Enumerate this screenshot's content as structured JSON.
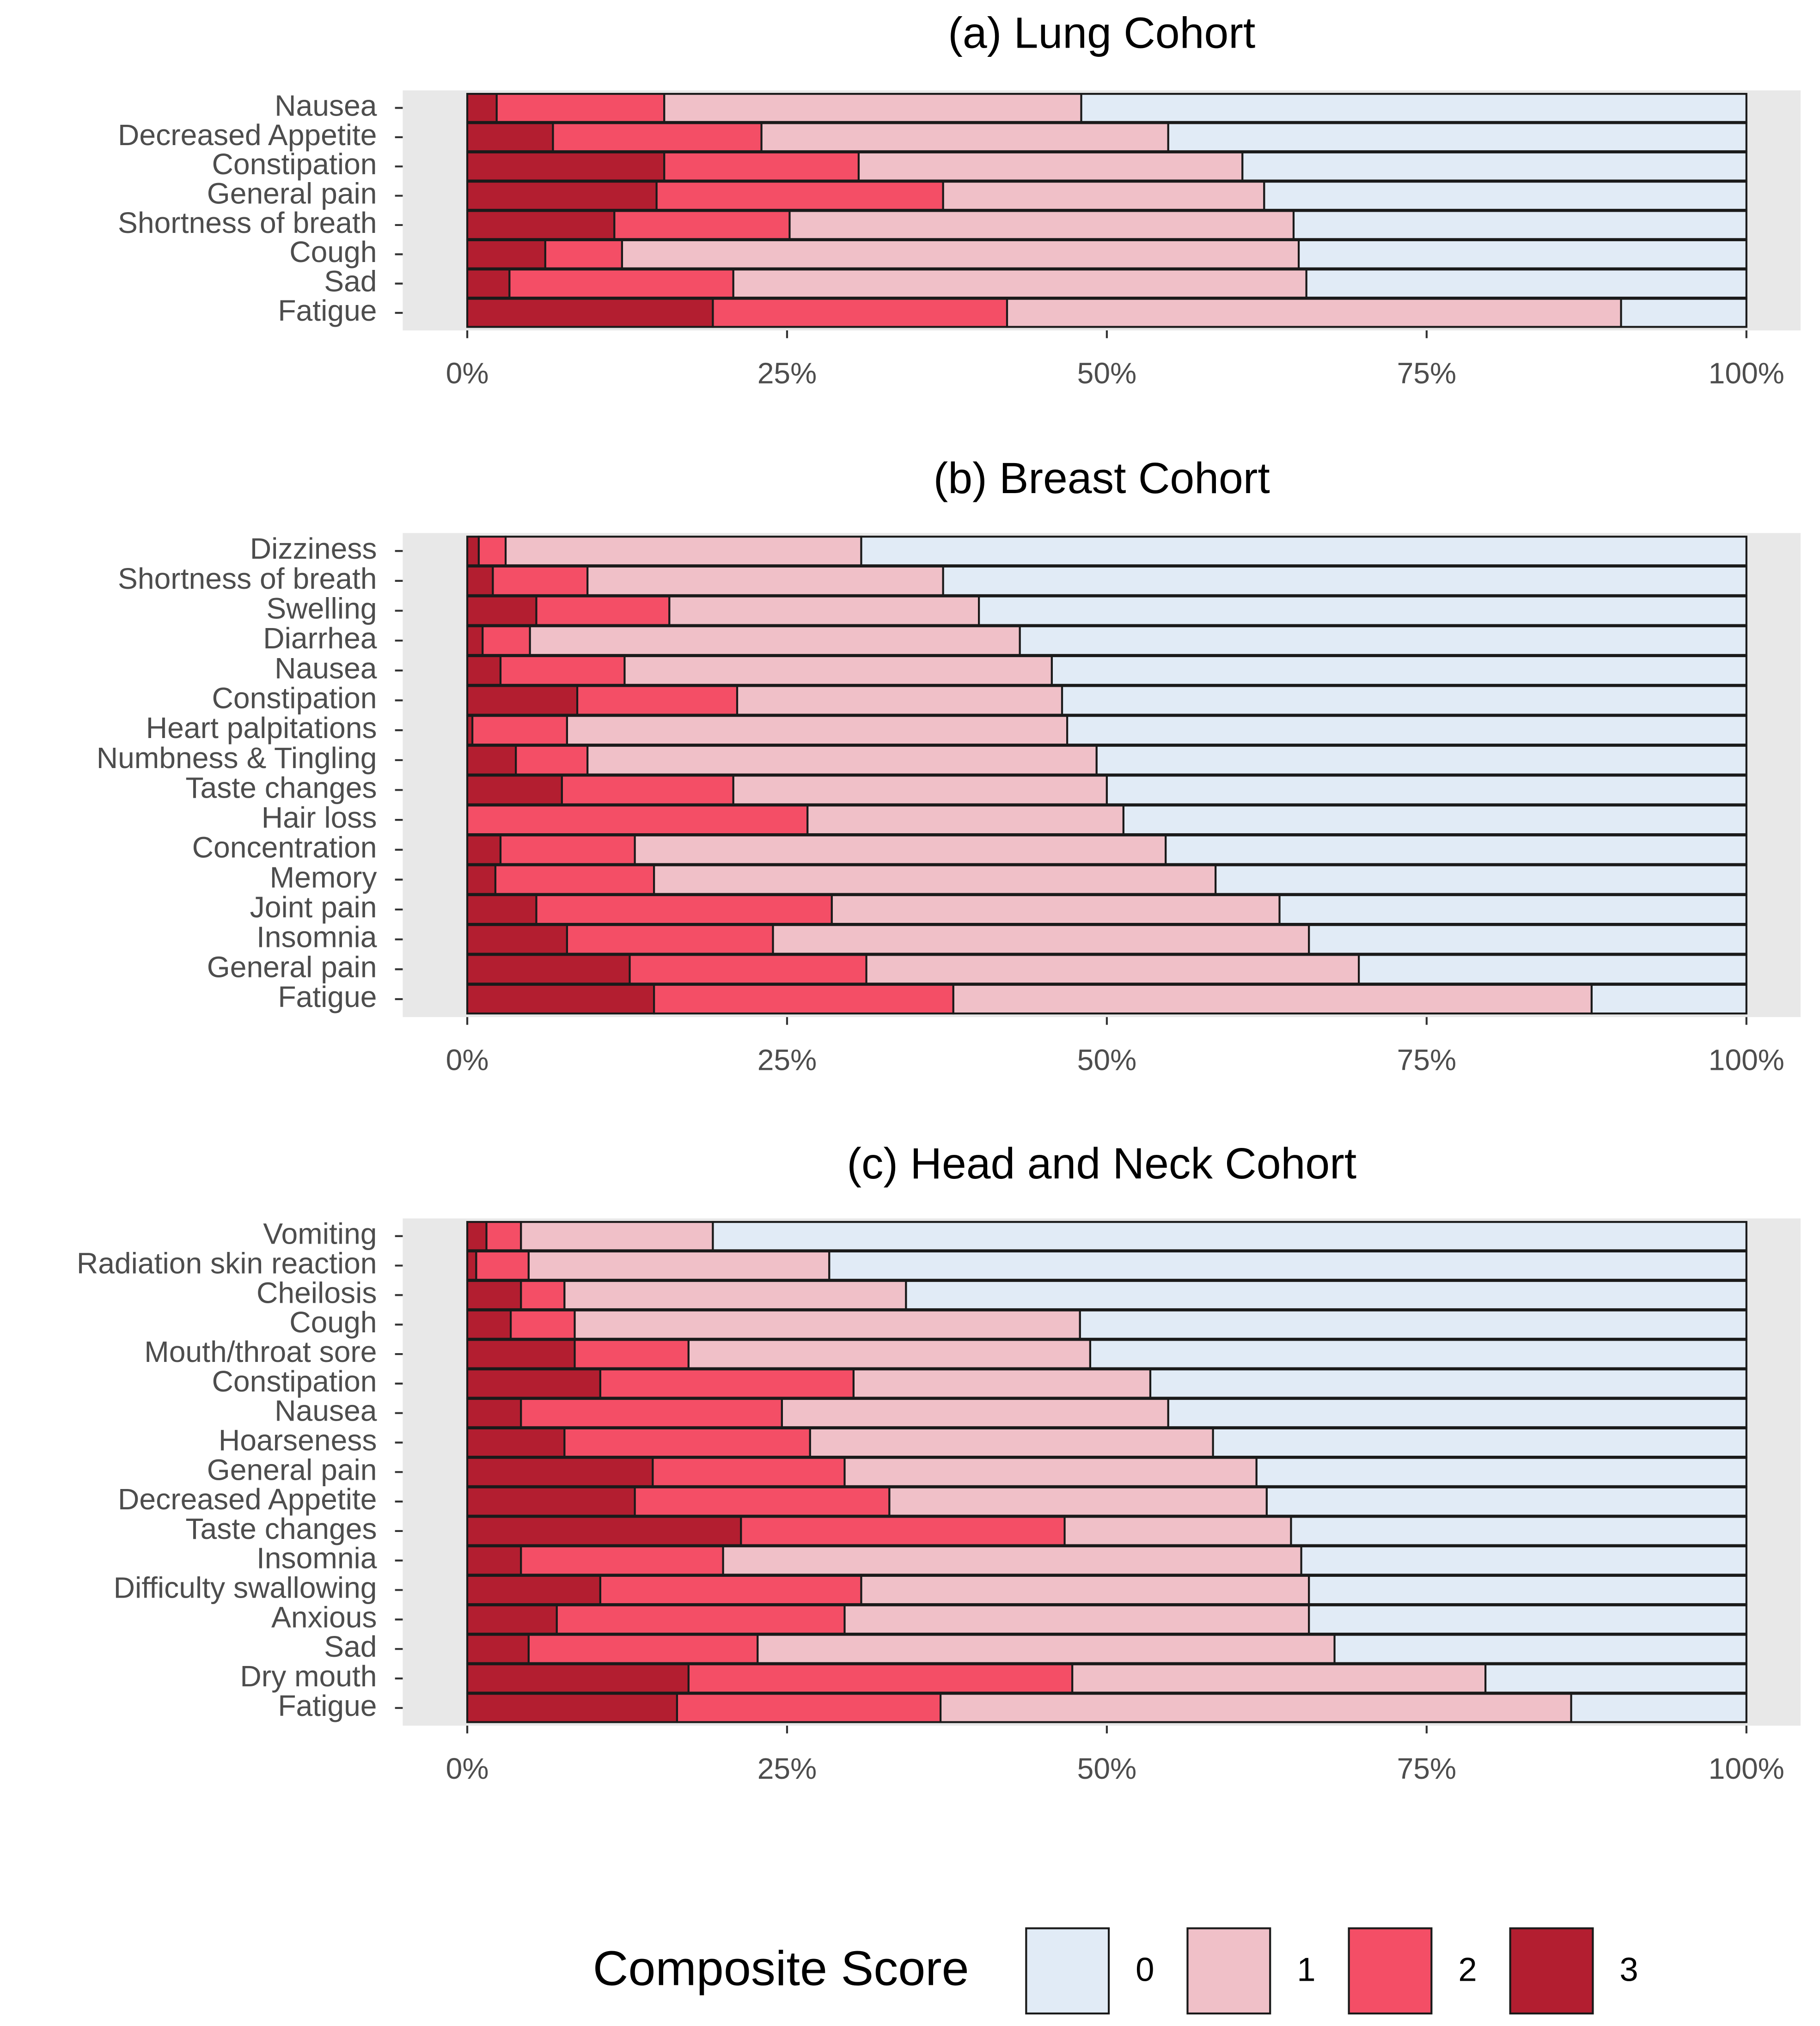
{
  "chart_data": [
    {
      "type": "bar",
      "orientation": "horizontal",
      "stacked": true,
      "title": "(a) Lung Cohort",
      "categories": [
        "Nausea",
        "Decreased Appetite",
        "Constipation",
        "General pain",
        "Shortness of breath",
        "Cough",
        "Sad",
        "Fatigue"
      ],
      "series": [
        {
          "name": "0",
          "color": "#e1ebf6",
          "values": [
            52.0,
            45.2,
            39.4,
            37.7,
            35.4,
            35.0,
            34.4,
            9.8
          ]
        },
        {
          "name": "1",
          "color": "#f0c0c8",
          "values": [
            32.6,
            31.8,
            30.0,
            25.1,
            39.4,
            52.9,
            44.8,
            48.0
          ]
        },
        {
          "name": "2",
          "color": "#f44e66",
          "values": [
            13.1,
            16.3,
            15.2,
            22.4,
            13.7,
            6.0,
            17.5,
            23.0
          ]
        },
        {
          "name": "3",
          "color": "#b31e30",
          "values": [
            2.3,
            6.7,
            15.4,
            14.8,
            11.5,
            6.1,
            3.3,
            19.2
          ]
        }
      ],
      "xlim": [
        0,
        100
      ],
      "xticks": [
        {
          "value": 0,
          "label": "0%"
        },
        {
          "value": 25,
          "label": "25%"
        },
        {
          "value": 50,
          "label": "50%"
        },
        {
          "value": 75,
          "label": "75%"
        },
        {
          "value": 100,
          "label": "100%"
        }
      ]
    },
    {
      "type": "bar",
      "orientation": "horizontal",
      "stacked": true,
      "title": "(b) Breast Cohort",
      "categories": [
        "Dizziness",
        "Shortness of breath",
        "Swelling",
        "Diarrhea",
        "Nausea",
        "Constipation",
        "Heart palpitations",
        "Numbness & Tingling",
        "Taste changes",
        "Hair loss",
        "Concentration",
        "Memory",
        "Joint pain",
        "Insomnia",
        "General pain",
        "Fatigue"
      ],
      "series": [
        {
          "name": "0",
          "color": "#e1ebf6",
          "values": [
            69.2,
            62.8,
            60.0,
            56.8,
            54.3,
            53.5,
            53.1,
            50.8,
            50.0,
            48.7,
            45.4,
            41.5,
            36.5,
            34.2,
            30.3,
            12.1
          ]
        },
        {
          "name": "1",
          "color": "#f0c0c8",
          "values": [
            27.8,
            27.8,
            24.2,
            38.3,
            33.4,
            25.4,
            39.1,
            39.8,
            29.2,
            24.7,
            41.5,
            43.9,
            35.0,
            41.9,
            38.5,
            49.9
          ]
        },
        {
          "name": "2",
          "color": "#f44e66",
          "values": [
            2.1,
            7.4,
            10.4,
            3.7,
            9.7,
            12.5,
            7.4,
            5.6,
            13.4,
            26.6,
            10.5,
            12.4,
            23.1,
            16.1,
            18.5,
            23.4
          ]
        },
        {
          "name": "3",
          "color": "#b31e30",
          "values": [
            0.9,
            2.0,
            5.4,
            1.2,
            2.6,
            8.6,
            0.4,
            3.8,
            7.4,
            0,
            2.6,
            2.2,
            5.4,
            7.8,
            12.7,
            14.6
          ]
        }
      ],
      "xlim": [
        0,
        100
      ],
      "xticks": [
        {
          "value": 0,
          "label": "0%"
        },
        {
          "value": 25,
          "label": "25%"
        },
        {
          "value": 50,
          "label": "50%"
        },
        {
          "value": 75,
          "label": "75%"
        },
        {
          "value": 100,
          "label": "100%"
        }
      ]
    },
    {
      "type": "bar",
      "orientation": "horizontal",
      "stacked": true,
      "title": "(c) Head and Neck Cohort",
      "categories": [
        "Vomiting",
        "Radiation skin reaction",
        "Cheilosis",
        "Cough",
        "Mouth/throat sore",
        "Constipation",
        "Nausea",
        "Hoarseness",
        "General pain",
        "Decreased Appetite",
        "Taste changes",
        "Insomnia",
        "Difficulty swallowing",
        "Anxious",
        "Sad",
        "Dry mouth",
        "Fatigue"
      ],
      "series": [
        {
          "name": "0",
          "color": "#e1ebf6",
          "values": [
            80.8,
            71.7,
            65.7,
            52.1,
            51.3,
            46.6,
            45.2,
            41.7,
            38.3,
            37.5,
            35.6,
            34.8,
            34.2,
            34.2,
            32.2,
            20.4,
            13.7
          ]
        },
        {
          "name": "1",
          "color": "#f0c0c8",
          "values": [
            15.0,
            23.5,
            26.7,
            39.5,
            31.4,
            23.2,
            30.2,
            31.5,
            32.2,
            29.5,
            17.7,
            45.2,
            35.0,
            36.3,
            45.1,
            32.3,
            49.3
          ]
        },
        {
          "name": "2",
          "color": "#f44e66",
          "values": [
            2.7,
            4.1,
            3.4,
            5.0,
            8.9,
            19.8,
            20.4,
            19.2,
            15.0,
            19.9,
            25.3,
            15.8,
            20.4,
            22.5,
            17.9,
            30.0,
            20.6
          ]
        },
        {
          "name": "3",
          "color": "#b31e30",
          "values": [
            1.5,
            0.7,
            4.2,
            3.4,
            8.4,
            10.4,
            4.2,
            7.6,
            14.5,
            13.1,
            21.4,
            4.2,
            10.4,
            7.0,
            4.8,
            17.3,
            16.4
          ]
        }
      ],
      "xlim": [
        0,
        100
      ],
      "xticks": [
        {
          "value": 0,
          "label": "0%"
        },
        {
          "value": 25,
          "label": "25%"
        },
        {
          "value": 50,
          "label": "50%"
        },
        {
          "value": 75,
          "label": "75%"
        },
        {
          "value": 100,
          "label": "100%"
        }
      ]
    }
  ],
  "legend": {
    "title": "Composite Score",
    "position": "bottom"
  }
}
